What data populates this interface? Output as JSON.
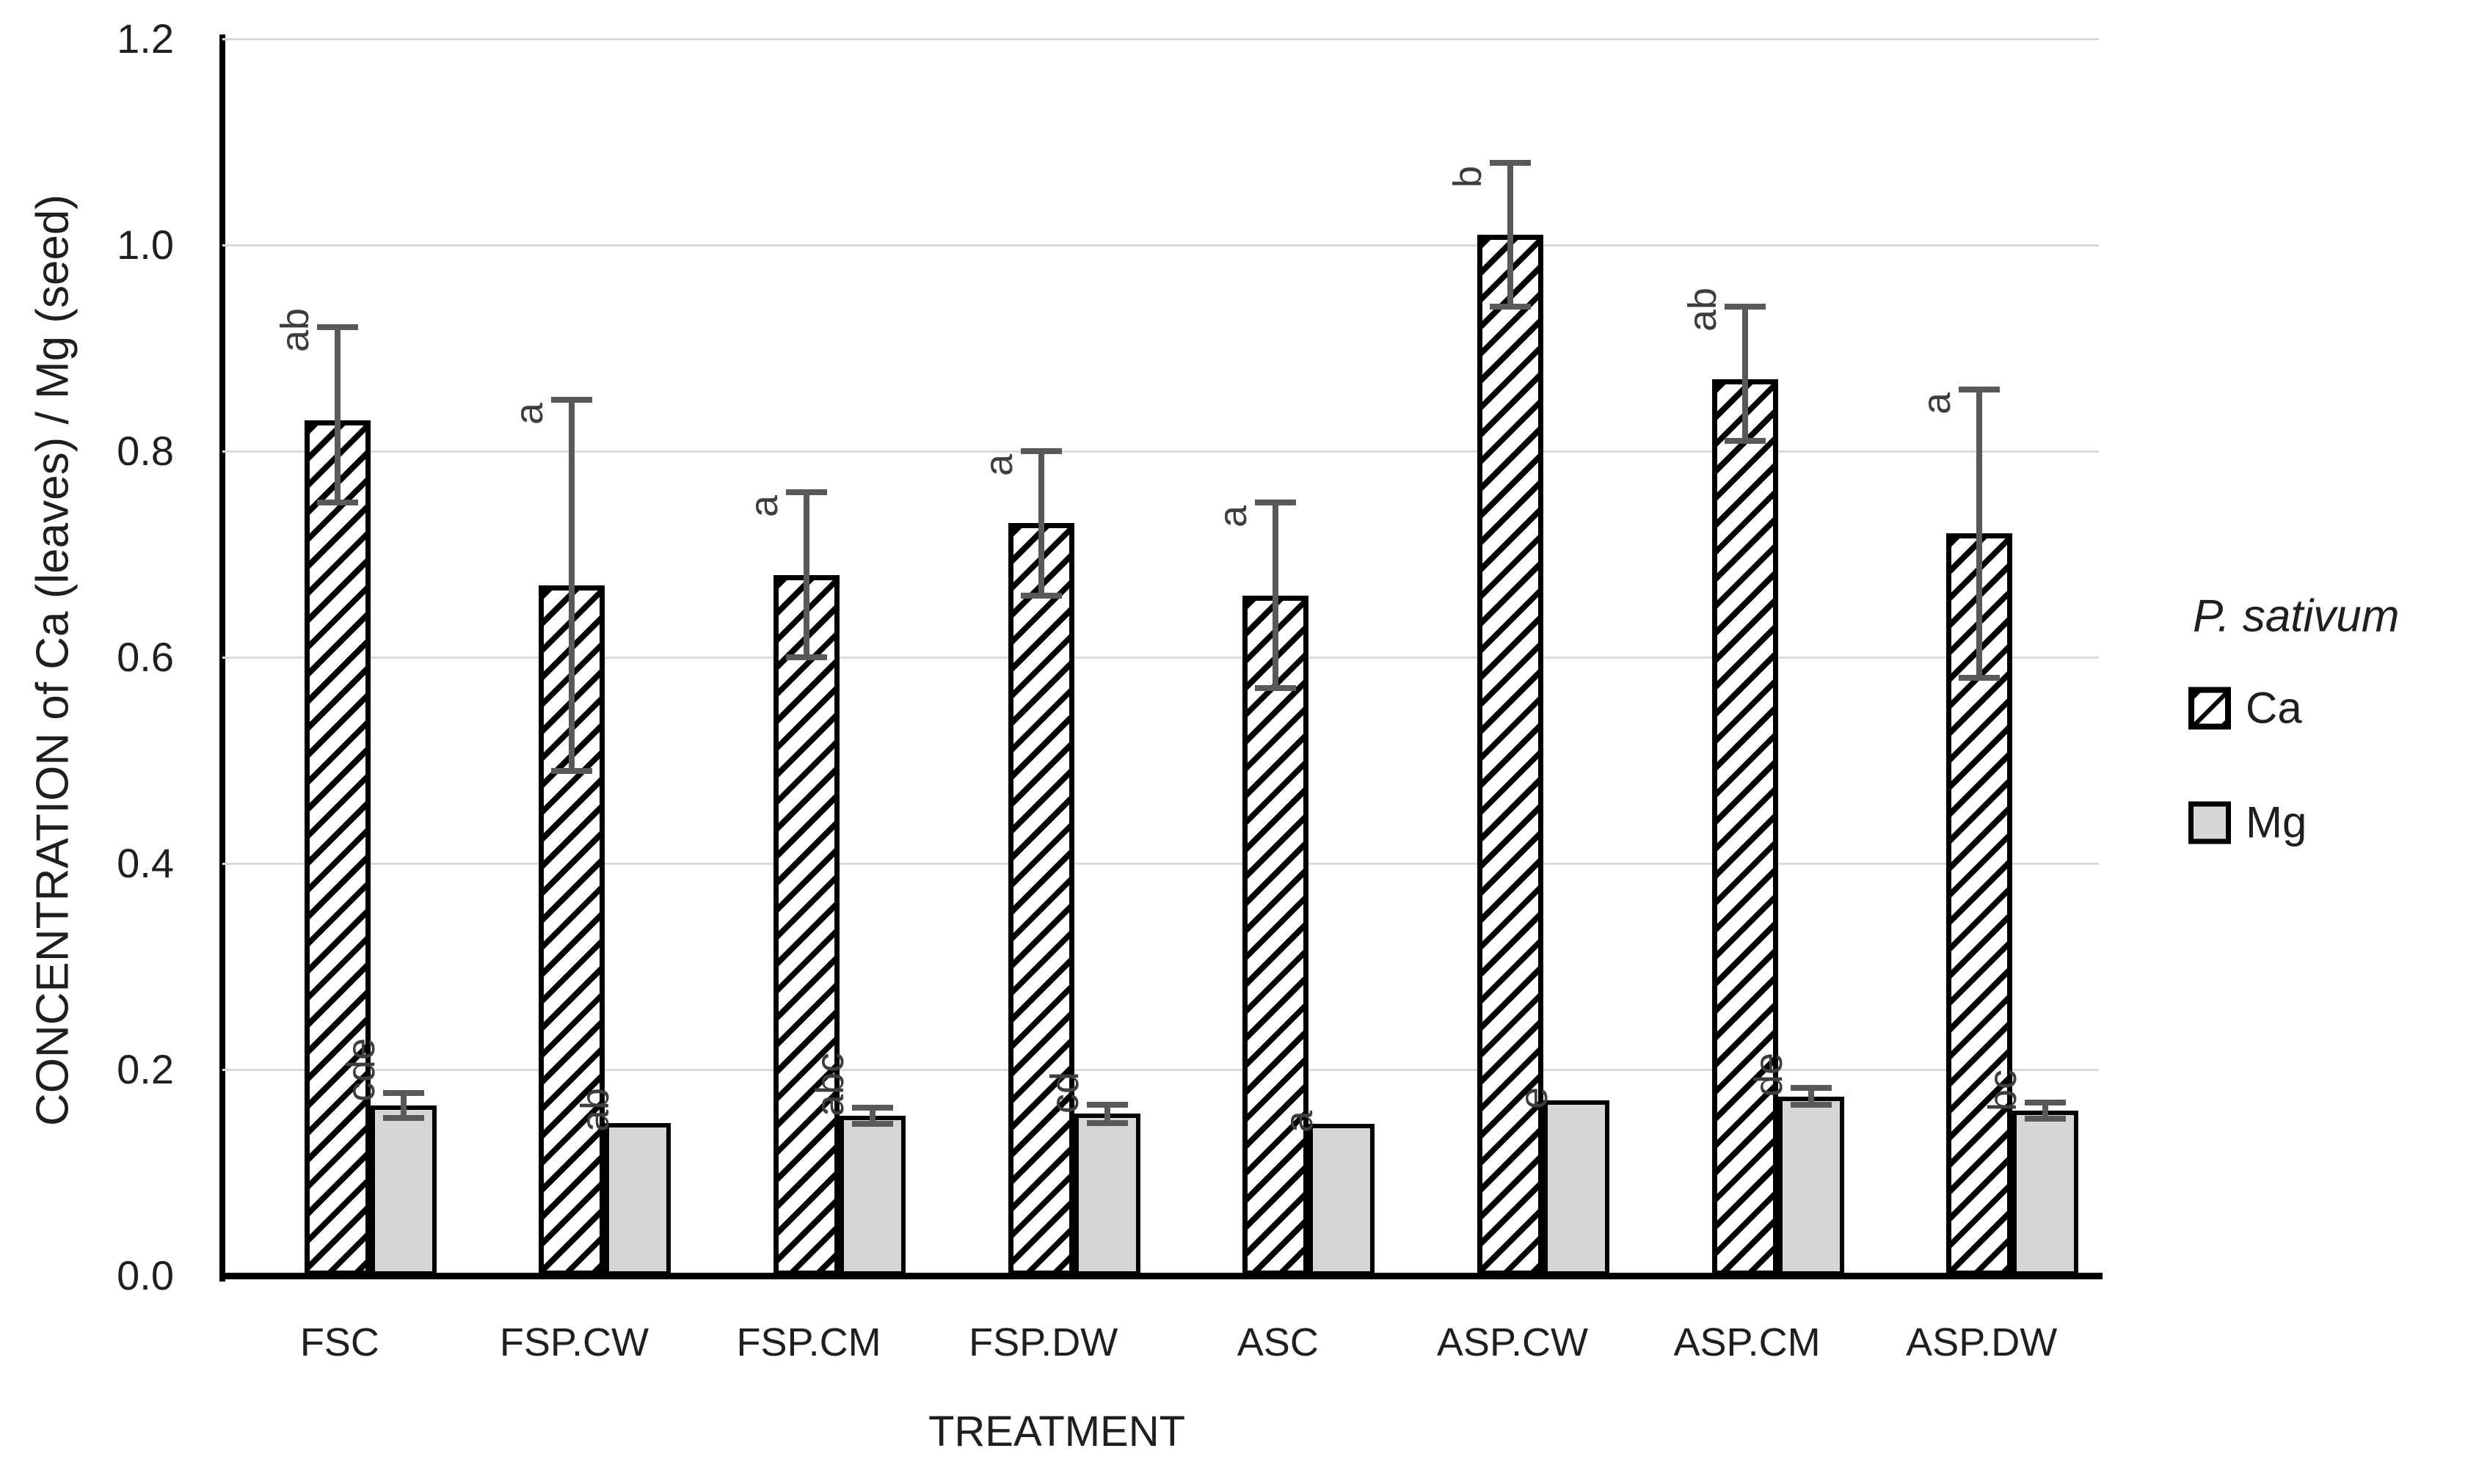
{
  "figure": {
    "y_axis_title": "CONCENTRATION of Ca (leaves) / Mg (seed)",
    "x_axis_title": "TREATMENT",
    "legend_title": "P. sativum"
  },
  "chart_data": {
    "type": "bar",
    "categories": [
      "FSC",
      "FSP.CW",
      "FSP.CM",
      "FSP.DW",
      "ASC",
      "ASP.CW",
      "ASP.CM",
      "ASP.DW"
    ],
    "series": [
      {
        "name": "Ca",
        "pattern": "diagonal-hatch",
        "values": [
          0.83,
          0.67,
          0.68,
          0.73,
          0.66,
          1.01,
          0.87,
          0.72
        ],
        "err_plus": [
          0.09,
          0.18,
          0.08,
          0.07,
          0.09,
          0.07,
          0.07,
          0.14
        ],
        "err_minus": [
          0.08,
          0.18,
          0.08,
          0.07,
          0.09,
          0.07,
          0.06,
          0.14
        ],
        "letters": [
          "ab",
          "a",
          "a",
          "a",
          "a",
          "b",
          "ab",
          "a"
        ]
      },
      {
        "name": "Mg",
        "pattern": "solid",
        "fill": "#d6d6d6",
        "values": [
          0.165,
          0.148,
          0.155,
          0.157,
          0.147,
          0.17,
          0.174,
          0.16
        ],
        "err_plus": [
          0.012,
          0,
          0.008,
          0.009,
          0,
          0,
          0.008,
          0.008
        ],
        "err_minus": [
          0.012,
          0,
          0.008,
          0.009,
          0,
          0,
          0.008,
          0.008
        ],
        "letters": [
          "cde",
          "ab",
          "abc",
          "cd",
          "a",
          "e",
          "de",
          "bc"
        ]
      }
    ],
    "xlabel": "TREATMENT",
    "ylabel": "CONCENTRATION of Ca (leaves) / Mg (seed)",
    "ylim": [
      0,
      1.2
    ],
    "ytick_labels": [
      "0.0",
      "0.2",
      "0.4",
      "0.6",
      "0.8",
      "1.0",
      "1.2"
    ],
    "grid": true,
    "legend": {
      "title": "P. sativum",
      "entries": [
        "Ca",
        "Mg"
      ],
      "position": "right"
    },
    "colors": {
      "axis": "#000000",
      "grid": "#d9d9d9",
      "error_bar": "#595959",
      "mg_fill": "#d6d6d6",
      "text": "#1f1f1f",
      "letter_text": "#3d3d3d"
    }
  }
}
